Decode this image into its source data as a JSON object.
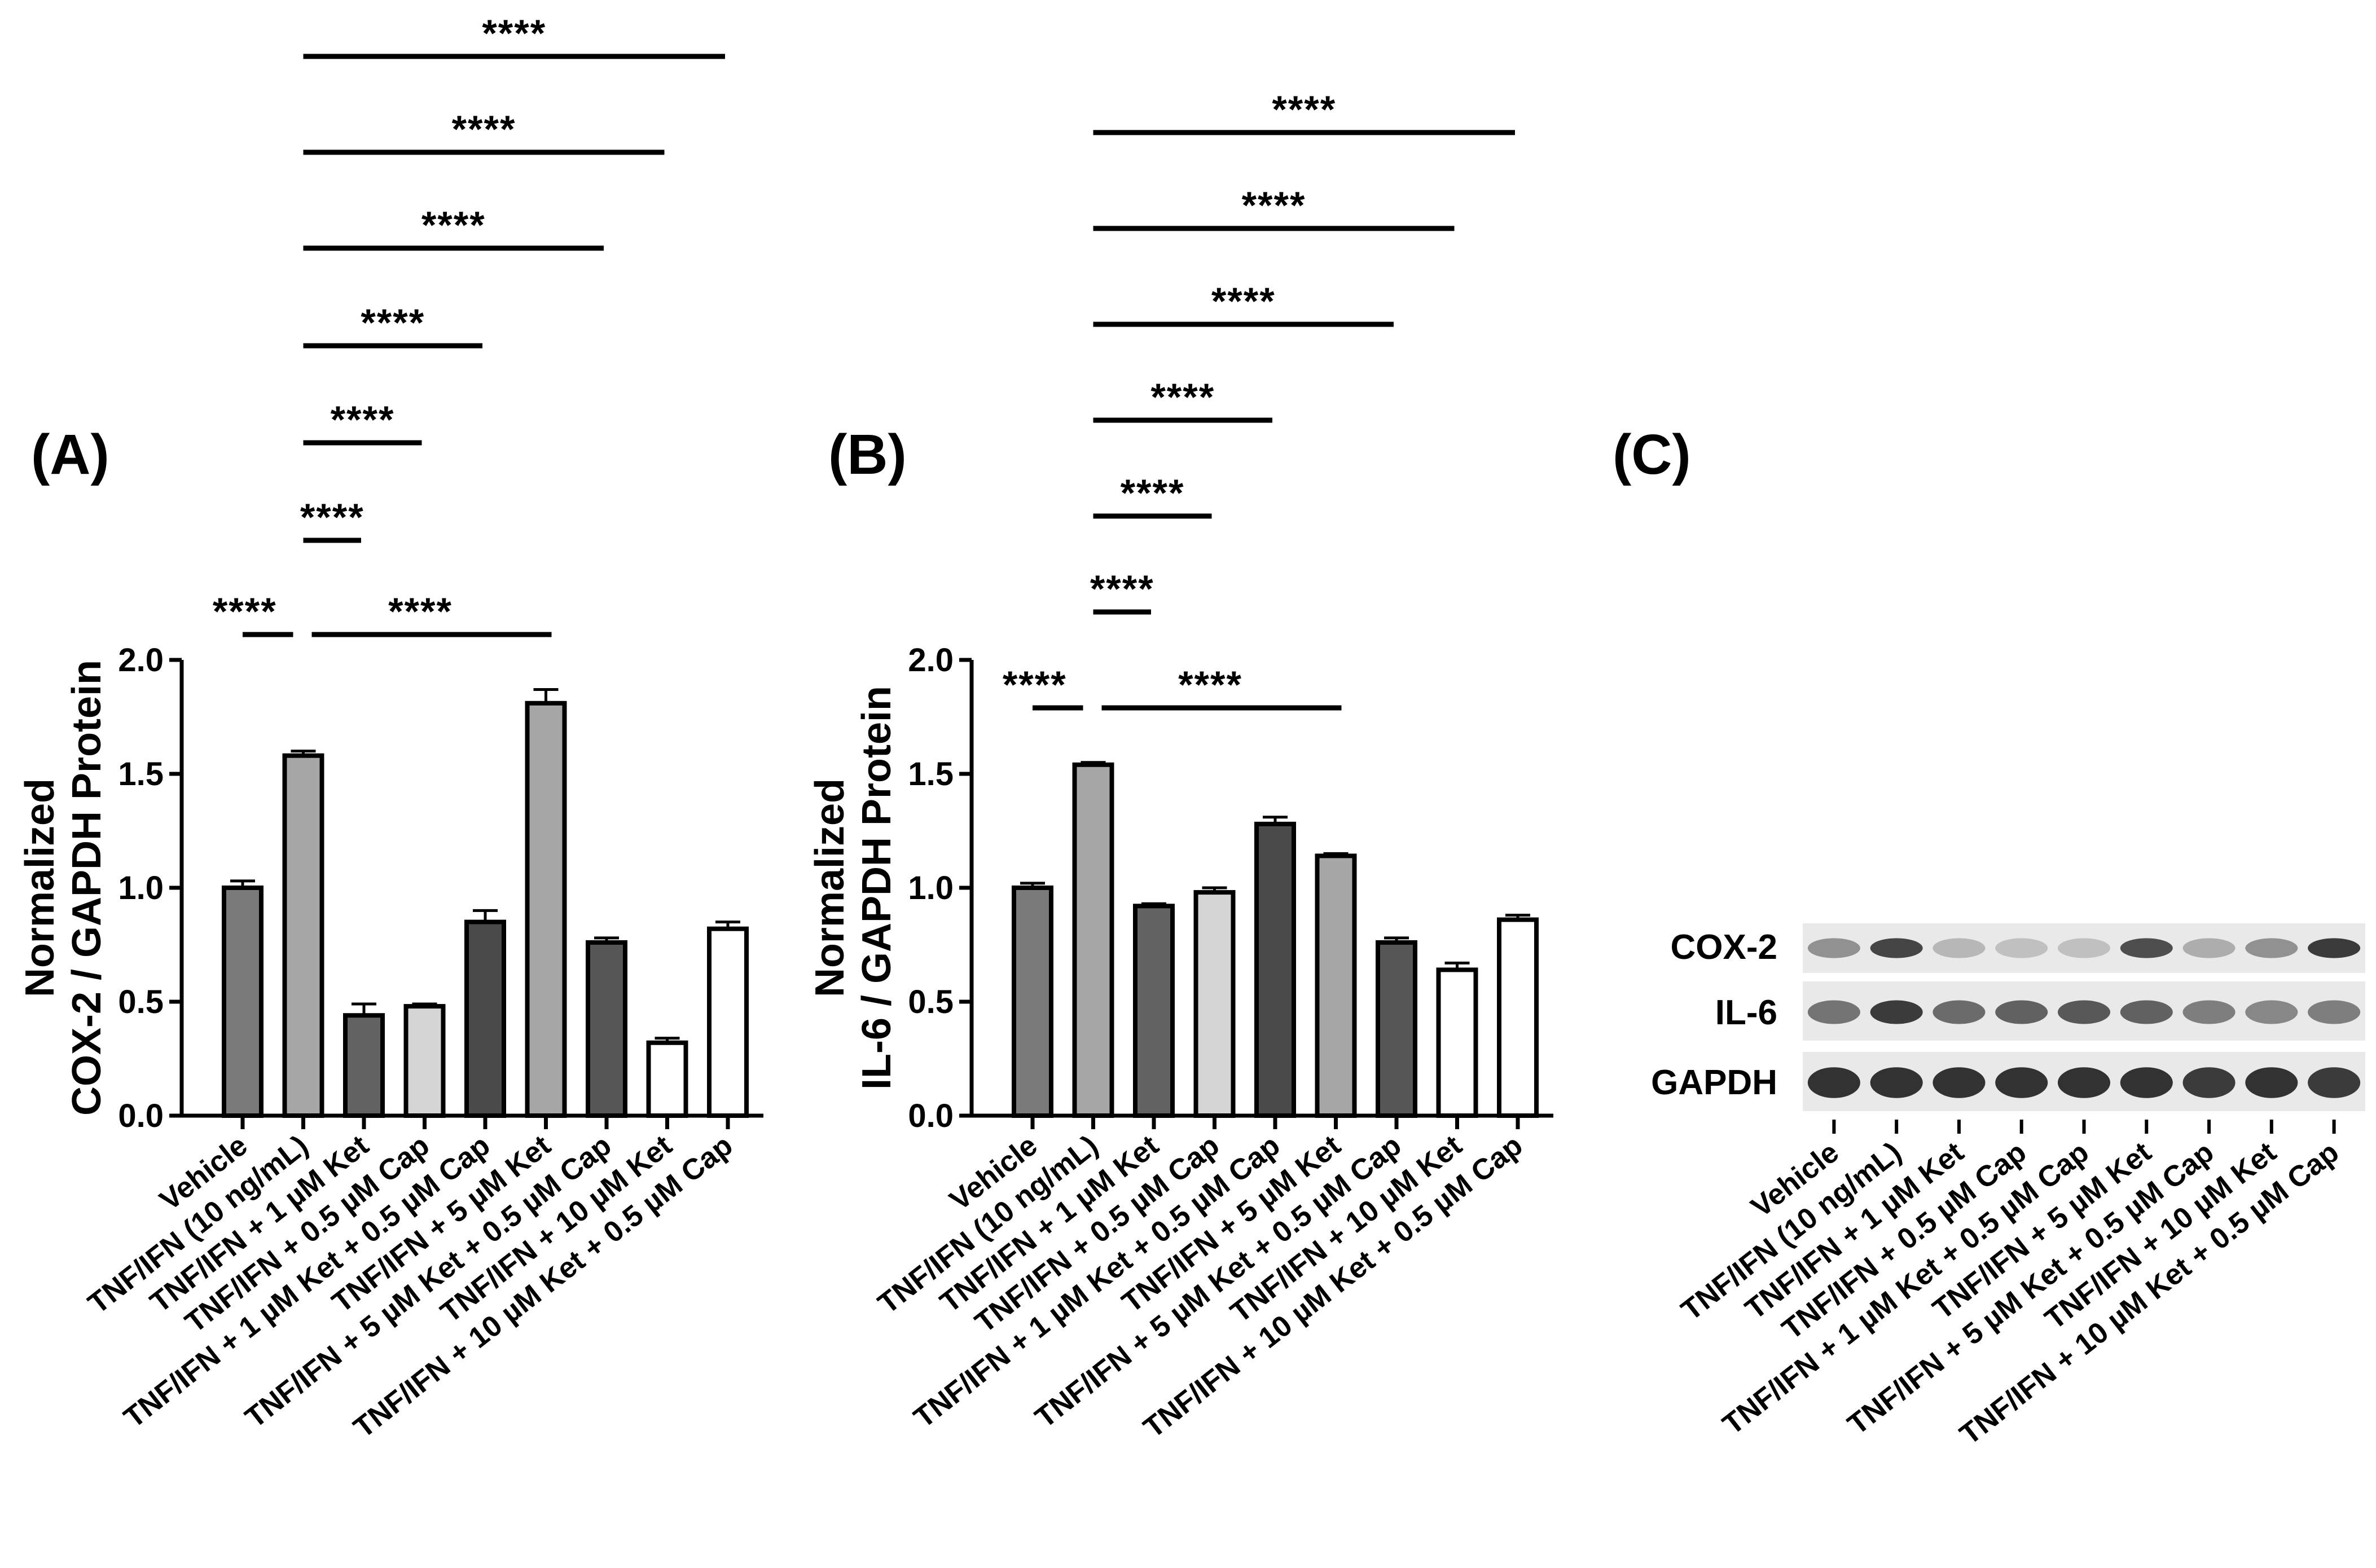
{
  "panel_letters": [
    "(A)",
    "(B)",
    "(C)"
  ],
  "blot_labels": [
    "COX-2",
    "IL-6",
    "GAPDH"
  ],
  "colors": {
    "Vehicle": "#7a7a7a",
    "TNF/IFN (10 ng/mL)": "#a6a6a6",
    "Ket 1 µM": "#626262",
    "Cap 0.5 µM": "#d5d5d5",
    "1 µM Ket + 0.5 µM Cap": "#4a4a4a",
    "5 µM Ket": "#a6a6a6",
    "5 µM Ket + 0.5 µM Cap": "#565656",
    "10 µM Ket": "#ffffff",
    "10 µM Ket + 0.5 µM Cap": "#ffffff"
  },
  "chart_data": [
    {
      "type": "bar",
      "panel": "(A)",
      "ylabel": [
        "Normalized",
        "COX-2 / GAPDH Protein"
      ],
      "ylim": [
        0,
        2.0
      ],
      "yticks": [
        "0.0",
        "0.5",
        "1.0",
        "1.5",
        "2.0"
      ],
      "categories": [
        "Vehicle",
        "TNF/IFN (10 ng/mL)",
        "TNF/IFN + 1 µM Ket",
        "TNF/IFN + 0.5 µM Cap",
        "TNF/IFN + 1 µM Ket + 0.5 µM Cap",
        "TNF/IFN + 5 µM Ket",
        "TNF/IFN + 5 µM Ket + 0.5 µM Cap",
        "TNF/IFN + 10 µM Ket",
        "TNF/IFN + 10 µM Ket + 0.5 µM Cap"
      ],
      "values": [
        1.0,
        1.58,
        0.44,
        0.48,
        0.85,
        1.81,
        0.76,
        0.32,
        0.82
      ],
      "errors": [
        0.03,
        0.02,
        0.05,
        0.01,
        0.05,
        0.06,
        0.02,
        0.02,
        0.03
      ],
      "significance": [
        {
          "from": 0,
          "to": 1,
          "label": "****"
        },
        {
          "from": 1,
          "to": 5,
          "label": "****"
        },
        {
          "from": 1,
          "to": 2,
          "label": "****"
        },
        {
          "from": 1,
          "to": 3,
          "label": "****"
        },
        {
          "from": 1,
          "to": 4,
          "label": "****"
        },
        {
          "from": 1,
          "to": 6,
          "label": "****"
        },
        {
          "from": 1,
          "to": 7,
          "label": "****"
        },
        {
          "from": 1,
          "to": 8,
          "label": "****"
        }
      ]
    },
    {
      "type": "bar",
      "panel": "(B)",
      "ylabel": [
        "Normalized",
        "IL-6 / GAPDH Protein"
      ],
      "ylim": [
        0,
        2.0
      ],
      "yticks": [
        "0.0",
        "0.5",
        "1.0",
        "1.5",
        "2.0"
      ],
      "categories": [
        "Vehicle",
        "TNF/IFN (10 ng/mL)",
        "TNF/IFN + 1 µM Ket",
        "TNF/IFN + 0.5 µM Cap",
        "TNF/IFN + 1 µM Ket + 0.5 µM Cap",
        "TNF/IFN + 5 µM Ket",
        "TNF/IFN + 5 µM Ket + 0.5 µM Cap",
        "TNF/IFN + 10 µM Ket",
        "TNF/IFN + 10 µM Ket + 0.5 µM Cap"
      ],
      "values": [
        1.0,
        1.54,
        0.92,
        0.98,
        1.28,
        1.14,
        0.76,
        0.64,
        0.86
      ],
      "errors": [
        0.02,
        0.01,
        0.01,
        0.02,
        0.03,
        0.01,
        0.02,
        0.03,
        0.02
      ],
      "significance": [
        {
          "from": 0,
          "to": 1,
          "label": "****"
        },
        {
          "from": 1,
          "to": 5,
          "label": "****"
        },
        {
          "from": 1,
          "to": 2,
          "label": "****"
        },
        {
          "from": 1,
          "to": 3,
          "label": "****"
        },
        {
          "from": 1,
          "to": 4,
          "label": "****"
        },
        {
          "from": 1,
          "to": 6,
          "label": "****"
        },
        {
          "from": 1,
          "to": 7,
          "label": "****"
        },
        {
          "from": 1,
          "to": 8,
          "label": "****"
        }
      ]
    }
  ],
  "blot": {
    "categories": [
      "Vehicle",
      "TNF/IFN (10 ng/mL)",
      "TNF/IFN + 1 µM Ket",
      "TNF/IFN + 0.5 µM Cap",
      "TNF/IFN + 1 µM Ket + 0.5 µM Cap",
      "TNF/IFN + 5 µM Ket",
      "TNF/IFN + 5 µM Ket + 0.5 µM Cap",
      "TNF/IFN + 10 µM Ket",
      "TNF/IFN + 10 µM Ket + 0.5 µM Cap"
    ],
    "band_intensity": {
      "COX-2": [
        0.45,
        0.85,
        0.25,
        0.2,
        0.2,
        0.8,
        0.3,
        0.45,
        0.9
      ],
      "IL-6": [
        0.6,
        0.9,
        0.65,
        0.7,
        0.75,
        0.7,
        0.55,
        0.5,
        0.55
      ],
      "GAPDH": [
        0.95,
        0.95,
        0.95,
        0.95,
        0.95,
        0.95,
        0.9,
        0.95,
        0.9
      ]
    }
  }
}
